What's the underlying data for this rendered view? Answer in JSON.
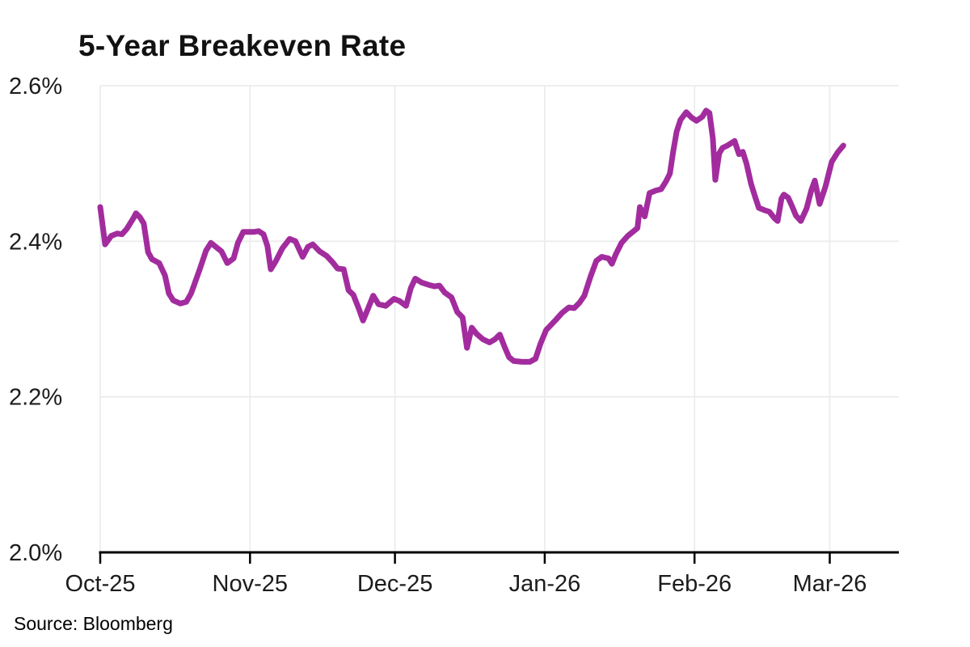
{
  "title": "5-Year Breakeven Rate",
  "source_note": "Source: Bloomberg",
  "colors": {
    "line": "#A22C9E",
    "grid": "#ECECEC",
    "axis": "#000000",
    "tick_text": "#1C1C1C",
    "title_text": "#121212",
    "background": "#FFFFFF"
  },
  "chart_data": {
    "type": "line",
    "title": "5-Year Breakeven Rate",
    "source": "Bloomberg",
    "grid": true,
    "legend": false,
    "x": {
      "label": "",
      "unit": "days since Oct 1, 2025",
      "tick_labels": [
        "Oct-25",
        "Nov-25",
        "Dec-25",
        "Jan-26",
        "Feb-26",
        "Mar-26"
      ],
      "tick_positions": [
        0,
        31,
        61,
        92,
        123,
        151
      ],
      "domain": [
        0,
        165.3
      ]
    },
    "y": {
      "label": "",
      "unit": "%",
      "tick_labels": [
        "2.0%",
        "2.2%",
        "2.4%",
        "2.6%"
      ],
      "tick_values": [
        2.0,
        2.2,
        2.4,
        2.6
      ],
      "domain": [
        2.0,
        2.6
      ]
    },
    "series": [
      {
        "name": "5-Year Breakeven Rate",
        "color": "#A22C9E",
        "points": [
          [
            0,
            2.444
          ],
          [
            1,
            2.396
          ],
          [
            2.3,
            2.407
          ],
          [
            3.5,
            2.41
          ],
          [
            4.5,
            2.409
          ],
          [
            5.5,
            2.416
          ],
          [
            6.9,
            2.43
          ],
          [
            7.4,
            2.436
          ],
          [
            8.2,
            2.431
          ],
          [
            9.0,
            2.423
          ],
          [
            9.9,
            2.386
          ],
          [
            10.7,
            2.377
          ],
          [
            12.2,
            2.372
          ],
          [
            13.4,
            2.356
          ],
          [
            14.2,
            2.333
          ],
          [
            15.1,
            2.324
          ],
          [
            16.6,
            2.32
          ],
          [
            17.8,
            2.322
          ],
          [
            18.8,
            2.333
          ],
          [
            20.6,
            2.364
          ],
          [
            21.9,
            2.388
          ],
          [
            22.9,
            2.398
          ],
          [
            24.1,
            2.392
          ],
          [
            25.1,
            2.387
          ],
          [
            26.3,
            2.372
          ],
          [
            27.6,
            2.378
          ],
          [
            28.5,
            2.398
          ],
          [
            29.6,
            2.412
          ],
          [
            31.7,
            2.412
          ],
          [
            32.8,
            2.413
          ],
          [
            33.8,
            2.409
          ],
          [
            34.6,
            2.394
          ],
          [
            35.3,
            2.364
          ],
          [
            36.3,
            2.374
          ],
          [
            37.7,
            2.391
          ],
          [
            39.2,
            2.403
          ],
          [
            40.4,
            2.4
          ],
          [
            41.9,
            2.38
          ],
          [
            43.0,
            2.393
          ],
          [
            44.0,
            2.396
          ],
          [
            45.4,
            2.387
          ],
          [
            46.9,
            2.381
          ],
          [
            48.1,
            2.373
          ],
          [
            49.1,
            2.365
          ],
          [
            50.4,
            2.364
          ],
          [
            51.4,
            2.337
          ],
          [
            52.4,
            2.331
          ],
          [
            53.6,
            2.312
          ],
          [
            54.4,
            2.298
          ],
          [
            55.4,
            2.313
          ],
          [
            56.5,
            2.33
          ],
          [
            57.6,
            2.319
          ],
          [
            59.1,
            2.317
          ],
          [
            60.8,
            2.326
          ],
          [
            62.0,
            2.323
          ],
          [
            63.3,
            2.317
          ],
          [
            64.3,
            2.34
          ],
          [
            65.2,
            2.352
          ],
          [
            66.5,
            2.347
          ],
          [
            68.0,
            2.344
          ],
          [
            69.2,
            2.342
          ],
          [
            70.2,
            2.343
          ],
          [
            71.3,
            2.334
          ],
          [
            72.7,
            2.328
          ],
          [
            73.9,
            2.309
          ],
          [
            75.0,
            2.302
          ],
          [
            75.9,
            2.263
          ],
          [
            76.9,
            2.289
          ],
          [
            77.9,
            2.281
          ],
          [
            79.2,
            2.274
          ],
          [
            80.6,
            2.27
          ],
          [
            81.7,
            2.274
          ],
          [
            82.7,
            2.28
          ],
          [
            83.7,
            2.264
          ],
          [
            84.6,
            2.251
          ],
          [
            85.6,
            2.246
          ],
          [
            87.3,
            2.245
          ],
          [
            88.9,
            2.245
          ],
          [
            90.1,
            2.249
          ],
          [
            91.1,
            2.268
          ],
          [
            92.3,
            2.286
          ],
          [
            94.3,
            2.299
          ],
          [
            95.6,
            2.308
          ],
          [
            97.0,
            2.315
          ],
          [
            98.1,
            2.314
          ],
          [
            99.2,
            2.321
          ],
          [
            100.2,
            2.33
          ],
          [
            101.5,
            2.355
          ],
          [
            102.7,
            2.375
          ],
          [
            103.8,
            2.38
          ],
          [
            105.2,
            2.378
          ],
          [
            105.9,
            2.371
          ],
          [
            106.7,
            2.383
          ],
          [
            107.9,
            2.398
          ],
          [
            109.2,
            2.407
          ],
          [
            110.4,
            2.413
          ],
          [
            111.2,
            2.417
          ],
          [
            111.7,
            2.444
          ],
          [
            112.7,
            2.432
          ],
          [
            113.7,
            2.462
          ],
          [
            114.9,
            2.465
          ],
          [
            116.1,
            2.467
          ],
          [
            117.1,
            2.477
          ],
          [
            117.9,
            2.487
          ],
          [
            118.6,
            2.516
          ],
          [
            119.3,
            2.541
          ],
          [
            120.1,
            2.556
          ],
          [
            121.3,
            2.566
          ],
          [
            122.4,
            2.559
          ],
          [
            123.4,
            2.555
          ],
          [
            124.6,
            2.56
          ],
          [
            125.4,
            2.568
          ],
          [
            126.1,
            2.565
          ],
          [
            126.8,
            2.532
          ],
          [
            127.3,
            2.479
          ],
          [
            128.1,
            2.513
          ],
          [
            128.8,
            2.52
          ],
          [
            129.8,
            2.523
          ],
          [
            130.8,
            2.527
          ],
          [
            131.3,
            2.529
          ],
          [
            132.2,
            2.512
          ],
          [
            133.0,
            2.515
          ],
          [
            133.8,
            2.499
          ],
          [
            134.7,
            2.474
          ],
          [
            135.5,
            2.458
          ],
          [
            136.3,
            2.443
          ],
          [
            137.5,
            2.44
          ],
          [
            138.5,
            2.438
          ],
          [
            139.5,
            2.43
          ],
          [
            140.2,
            2.426
          ],
          [
            141.0,
            2.455
          ],
          [
            141.5,
            2.46
          ],
          [
            142.4,
            2.456
          ],
          [
            143.2,
            2.445
          ],
          [
            144.0,
            2.433
          ],
          [
            145.0,
            2.426
          ],
          [
            146.2,
            2.442
          ],
          [
            147.2,
            2.466
          ],
          [
            147.9,
            2.478
          ],
          [
            148.9,
            2.448
          ],
          [
            150.1,
            2.47
          ],
          [
            151.4,
            2.502
          ],
          [
            152.6,
            2.514
          ],
          [
            153.8,
            2.523
          ]
        ]
      }
    ]
  }
}
